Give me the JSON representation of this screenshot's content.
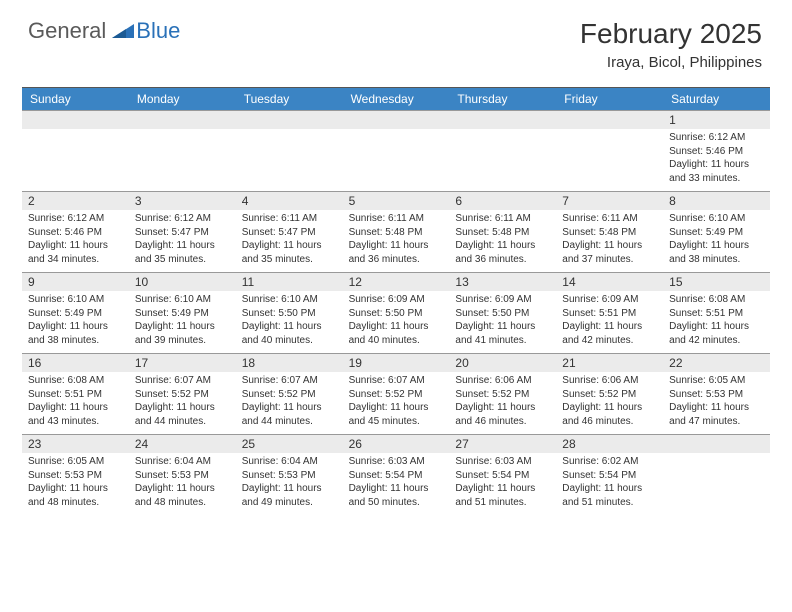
{
  "logo": {
    "text1": "General",
    "text2": "Blue"
  },
  "title": "February 2025",
  "location": "Iraya, Bicol, Philippines",
  "daynames": [
    "Sunday",
    "Monday",
    "Tuesday",
    "Wednesday",
    "Thursday",
    "Friday",
    "Saturday"
  ],
  "colors": {
    "header_bar": "#3b84c4",
    "daynum_bg": "#ebebeb",
    "logo_gray": "#5a5a5a",
    "logo_blue": "#2a71b8"
  },
  "weeks": [
    [
      {
        "n": "",
        "sr": "",
        "ss": "",
        "dl": ""
      },
      {
        "n": "",
        "sr": "",
        "ss": "",
        "dl": ""
      },
      {
        "n": "",
        "sr": "",
        "ss": "",
        "dl": ""
      },
      {
        "n": "",
        "sr": "",
        "ss": "",
        "dl": ""
      },
      {
        "n": "",
        "sr": "",
        "ss": "",
        "dl": ""
      },
      {
        "n": "",
        "sr": "",
        "ss": "",
        "dl": ""
      },
      {
        "n": "1",
        "sr": "Sunrise: 6:12 AM",
        "ss": "Sunset: 5:46 PM",
        "dl": "Daylight: 11 hours and 33 minutes."
      }
    ],
    [
      {
        "n": "2",
        "sr": "Sunrise: 6:12 AM",
        "ss": "Sunset: 5:46 PM",
        "dl": "Daylight: 11 hours and 34 minutes."
      },
      {
        "n": "3",
        "sr": "Sunrise: 6:12 AM",
        "ss": "Sunset: 5:47 PM",
        "dl": "Daylight: 11 hours and 35 minutes."
      },
      {
        "n": "4",
        "sr": "Sunrise: 6:11 AM",
        "ss": "Sunset: 5:47 PM",
        "dl": "Daylight: 11 hours and 35 minutes."
      },
      {
        "n": "5",
        "sr": "Sunrise: 6:11 AM",
        "ss": "Sunset: 5:48 PM",
        "dl": "Daylight: 11 hours and 36 minutes."
      },
      {
        "n": "6",
        "sr": "Sunrise: 6:11 AM",
        "ss": "Sunset: 5:48 PM",
        "dl": "Daylight: 11 hours and 36 minutes."
      },
      {
        "n": "7",
        "sr": "Sunrise: 6:11 AM",
        "ss": "Sunset: 5:48 PM",
        "dl": "Daylight: 11 hours and 37 minutes."
      },
      {
        "n": "8",
        "sr": "Sunrise: 6:10 AM",
        "ss": "Sunset: 5:49 PM",
        "dl": "Daylight: 11 hours and 38 minutes."
      }
    ],
    [
      {
        "n": "9",
        "sr": "Sunrise: 6:10 AM",
        "ss": "Sunset: 5:49 PM",
        "dl": "Daylight: 11 hours and 38 minutes."
      },
      {
        "n": "10",
        "sr": "Sunrise: 6:10 AM",
        "ss": "Sunset: 5:49 PM",
        "dl": "Daylight: 11 hours and 39 minutes."
      },
      {
        "n": "11",
        "sr": "Sunrise: 6:10 AM",
        "ss": "Sunset: 5:50 PM",
        "dl": "Daylight: 11 hours and 40 minutes."
      },
      {
        "n": "12",
        "sr": "Sunrise: 6:09 AM",
        "ss": "Sunset: 5:50 PM",
        "dl": "Daylight: 11 hours and 40 minutes."
      },
      {
        "n": "13",
        "sr": "Sunrise: 6:09 AM",
        "ss": "Sunset: 5:50 PM",
        "dl": "Daylight: 11 hours and 41 minutes."
      },
      {
        "n": "14",
        "sr": "Sunrise: 6:09 AM",
        "ss": "Sunset: 5:51 PM",
        "dl": "Daylight: 11 hours and 42 minutes."
      },
      {
        "n": "15",
        "sr": "Sunrise: 6:08 AM",
        "ss": "Sunset: 5:51 PM",
        "dl": "Daylight: 11 hours and 42 minutes."
      }
    ],
    [
      {
        "n": "16",
        "sr": "Sunrise: 6:08 AM",
        "ss": "Sunset: 5:51 PM",
        "dl": "Daylight: 11 hours and 43 minutes."
      },
      {
        "n": "17",
        "sr": "Sunrise: 6:07 AM",
        "ss": "Sunset: 5:52 PM",
        "dl": "Daylight: 11 hours and 44 minutes."
      },
      {
        "n": "18",
        "sr": "Sunrise: 6:07 AM",
        "ss": "Sunset: 5:52 PM",
        "dl": "Daylight: 11 hours and 44 minutes."
      },
      {
        "n": "19",
        "sr": "Sunrise: 6:07 AM",
        "ss": "Sunset: 5:52 PM",
        "dl": "Daylight: 11 hours and 45 minutes."
      },
      {
        "n": "20",
        "sr": "Sunrise: 6:06 AM",
        "ss": "Sunset: 5:52 PM",
        "dl": "Daylight: 11 hours and 46 minutes."
      },
      {
        "n": "21",
        "sr": "Sunrise: 6:06 AM",
        "ss": "Sunset: 5:52 PM",
        "dl": "Daylight: 11 hours and 46 minutes."
      },
      {
        "n": "22",
        "sr": "Sunrise: 6:05 AM",
        "ss": "Sunset: 5:53 PM",
        "dl": "Daylight: 11 hours and 47 minutes."
      }
    ],
    [
      {
        "n": "23",
        "sr": "Sunrise: 6:05 AM",
        "ss": "Sunset: 5:53 PM",
        "dl": "Daylight: 11 hours and 48 minutes."
      },
      {
        "n": "24",
        "sr": "Sunrise: 6:04 AM",
        "ss": "Sunset: 5:53 PM",
        "dl": "Daylight: 11 hours and 48 minutes."
      },
      {
        "n": "25",
        "sr": "Sunrise: 6:04 AM",
        "ss": "Sunset: 5:53 PM",
        "dl": "Daylight: 11 hours and 49 minutes."
      },
      {
        "n": "26",
        "sr": "Sunrise: 6:03 AM",
        "ss": "Sunset: 5:54 PM",
        "dl": "Daylight: 11 hours and 50 minutes."
      },
      {
        "n": "27",
        "sr": "Sunrise: 6:03 AM",
        "ss": "Sunset: 5:54 PM",
        "dl": "Daylight: 11 hours and 51 minutes."
      },
      {
        "n": "28",
        "sr": "Sunrise: 6:02 AM",
        "ss": "Sunset: 5:54 PM",
        "dl": "Daylight: 11 hours and 51 minutes."
      },
      {
        "n": "",
        "sr": "",
        "ss": "",
        "dl": ""
      }
    ]
  ]
}
